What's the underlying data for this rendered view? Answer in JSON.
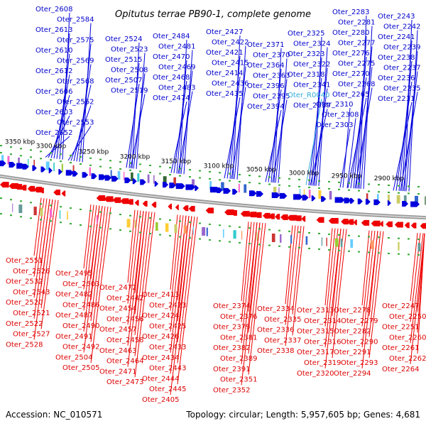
{
  "title": "Opitutus terrae PB90-1, complete genome",
  "footer": {
    "accession": "Accession: NC_010571",
    "summary": "Topology: circular; Length: 5,957,605 bp; Genes: 4,681"
  },
  "colors": {
    "forward": "#0000dd",
    "reverse": "#ee0000",
    "rna": "#33aadd",
    "backbone": "#999999",
    "tick": "#33aa33"
  },
  "scale_labels": [
    "3350 kbp",
    "3300 kbp",
    "3250 kbp",
    "3200 kbp",
    "3150 kbp",
    "3100 kbp",
    "3050 kbp",
    "3000 kbp",
    "2950 kbp",
    "2900 kbp"
  ],
  "forward_labels": [
    "Oter_2608",
    "Oter_2584",
    "Oter_2613",
    "Oter_2575",
    "Oter_2610",
    "Oter_2569",
    "Oter_2612",
    "Oter_2568",
    "Oter_2606",
    "Oter_2562",
    "Oter_2603",
    "Oter_2553",
    "Oter_2552",
    "Oter_2524",
    "Oter_2523",
    "Oter_2515",
    "Oter_2508",
    "Oter_2507",
    "Oter_2519",
    "Oter_2484",
    "Oter_2481",
    "Oter_2470",
    "Oter_2469",
    "Oter_2468",
    "Oter_2483",
    "Oter_2474",
    "Oter_2427",
    "Oter_2422",
    "Oter_2421",
    "Oter_2415",
    "Oter_2414",
    "Oter_2436",
    "Oter_2435",
    "Oter_2371",
    "Oter_2370",
    "Oter_2364",
    "Oter_2363",
    "Oter_2396",
    "Oter_2395",
    "Oter_2394",
    "Oter_2325",
    "Oter_2324",
    "Oter_2323",
    "Oter_2322",
    "Oter_2318",
    "Oter_2341",
    "Oter_R0040",
    "Oter_2339",
    "Oter_2310",
    "Oter_2308",
    "Oter_2303",
    "Oter_2283",
    "Oter_2281",
    "Oter_2280",
    "Oter_2277",
    "Oter_2276",
    "Oter_2275",
    "Oter_2270",
    "Oter_2268",
    "Oter_2265",
    "Oter_2243",
    "Oter_2242",
    "Oter_2241",
    "Oter_2239",
    "Oter_2238",
    "Oter_2237",
    "Oter_2236",
    "Oter_2235",
    "Oter_2231"
  ],
  "reverse_labels": [
    "Oter_2551",
    "Oter_2526",
    "Oter_2532",
    "Oter_2543",
    "Oter_2520",
    "Oter_2521",
    "Oter_2522",
    "Oter_2527",
    "Oter_2528",
    "Oter_2495",
    "Oter_2503",
    "Oter_2482",
    "Oter_2486",
    "Oter_2487",
    "Oter_2490",
    "Oter_2491",
    "Oter_2492",
    "Oter_2504",
    "Oter_2505",
    "Oter_2472",
    "Oter_2442",
    "Oter_2454",
    "Oter_2456",
    "Oter_2457",
    "Oter_2458",
    "Oter_2463",
    "Oter_2464",
    "Oter_2471",
    "Oter_2473",
    "Oter_2413",
    "Oter_2423",
    "Oter_2424",
    "Oter_2425",
    "Oter_2426",
    "Oter_2433",
    "Oter_2434",
    "Oter_2443",
    "Oter_2444",
    "Oter_2445",
    "Oter_2405",
    "Oter_2374",
    "Oter_2376",
    "Oter_2379",
    "Oter_2381",
    "Oter_2382",
    "Oter_2389",
    "Oter_2391",
    "Oter_2351",
    "Oter_2352",
    "Oter_2334",
    "Oter_2335",
    "Oter_2336",
    "Oter_2337",
    "Oter_2338",
    "Oter_2313",
    "Oter_2314",
    "Oter_2315",
    "Oter_2316",
    "Oter_2317",
    "Oter_2319",
    "Oter_2320",
    "Oter_2278",
    "Oter_2279",
    "Oter_2282",
    "Oter_2290",
    "Oter_2291",
    "Oter_2293",
    "Oter_2294",
    "Oter_2247",
    "Oter_2250",
    "Oter_2251",
    "Oter_2260",
    "Oter_2261",
    "Oter_2262",
    "Oter_2264"
  ]
}
